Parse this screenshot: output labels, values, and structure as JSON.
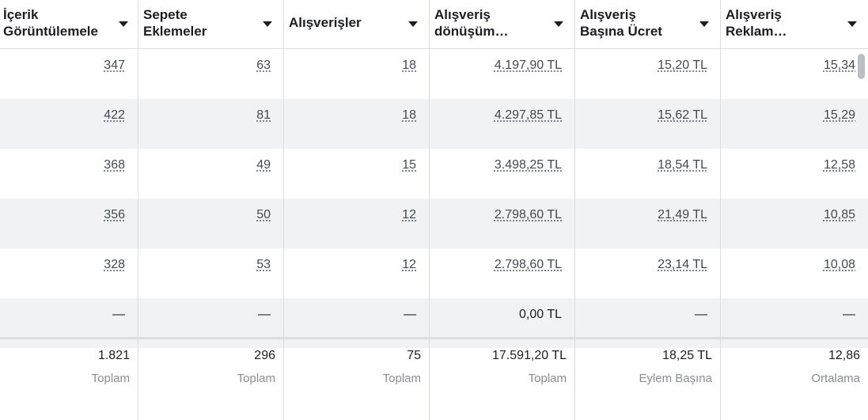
{
  "columns": [
    {
      "header": "İçerik\nGörüntülemele",
      "values": [
        "347",
        "422",
        "368",
        "356",
        "328",
        "—"
      ],
      "total": "1.821",
      "total_label": "Toplam"
    },
    {
      "header": "Sepete\nEklemeler",
      "values": [
        "63",
        "81",
        "49",
        "50",
        "53",
        "—"
      ],
      "total": "296",
      "total_label": "Toplam"
    },
    {
      "header": "Alışverişler",
      "values": [
        "18",
        "18",
        "15",
        "12",
        "12",
        "—"
      ],
      "total": "75",
      "total_label": "Toplam"
    },
    {
      "header": "Alışveriş\ndönüşüm…",
      "values": [
        "4.197,90 TL",
        "4.297,85 TL",
        "3.498,25 TL",
        "2.798,60 TL",
        "2.798,60 TL",
        "0,00 TL"
      ],
      "total": "17.591,20 TL",
      "total_label": "Toplam"
    },
    {
      "header": "Alışveriş\nBaşına Ücret",
      "values": [
        "15,20 TL",
        "15,62 TL",
        "18,54 TL",
        "21,49 TL",
        "23,14 TL",
        "—"
      ],
      "total": "18,25 TL",
      "total_label": "Eylem Başına"
    },
    {
      "header": "Alışveriş\nReklam…",
      "values": [
        "15,34",
        "15,29",
        "12,58",
        "10,85",
        "10,08",
        "—"
      ],
      "total": "12,86",
      "total_label": "Ortalama"
    }
  ]
}
